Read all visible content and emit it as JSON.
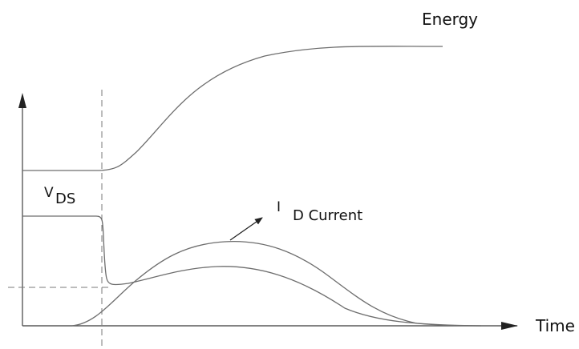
{
  "labels": {
    "energy": "Energy",
    "vds_main": "V",
    "vds_sub": "DS",
    "id_main": "I",
    "id_sub": "D Current",
    "time": "Time"
  },
  "colors": {
    "curve": "#6d6d6d",
    "axis": "#5a5a5a",
    "text": "#111111"
  }
}
